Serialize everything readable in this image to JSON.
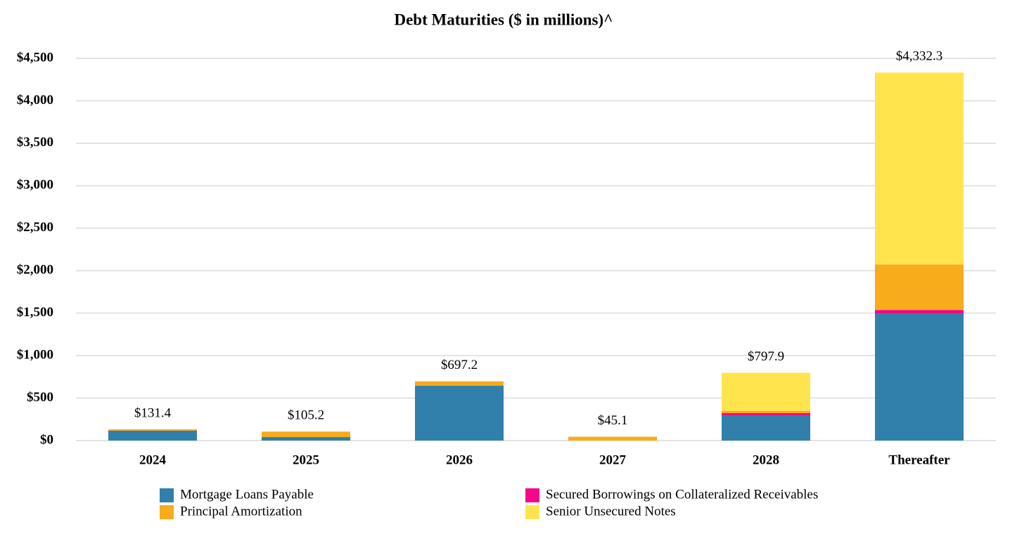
{
  "chart_data": {
    "type": "stacked-bar",
    "title": "Debt Maturities ($ in millions)^",
    "categories": [
      "2024",
      "2025",
      "2026",
      "2027",
      "2028",
      "Thereafter"
    ],
    "series": [
      {
        "name": "Mortgage Loans Payable",
        "color": "#3180ab",
        "values": [
          116,
          41,
          645,
          0,
          298,
          1497
        ]
      },
      {
        "name": "Secured Borrowings on Collateralized Receivables",
        "color": "#f5078a",
        "values": [
          0,
          0,
          0,
          0,
          25,
          40
        ]
      },
      {
        "name": "Principal Amortization",
        "color": "#f8ab1b",
        "values": [
          15.4,
          64.2,
          52.2,
          45.1,
          25,
          537
        ]
      },
      {
        "name": "Senior Unsecured Notes",
        "color": "#ffe44d",
        "values": [
          0,
          0,
          0,
          0,
          449.9,
          2258.3
        ]
      }
    ],
    "totals": {
      "values": [
        131.4,
        105.2,
        697.2,
        45.1,
        797.9,
        4332.3
      ],
      "value_labels": [
        "$131.4",
        "$105.2",
        "$697.2",
        "$45.1",
        "$797.9",
        "$4,332.3"
      ]
    },
    "ylim": [
      0,
      4500
    ],
    "yticks": [
      {
        "value": 0,
        "label": "$0"
      },
      {
        "value": 500,
        "label": "$500"
      },
      {
        "value": 1000,
        "label": "$1,000"
      },
      {
        "value": 1500,
        "label": "$1,500"
      },
      {
        "value": 2000,
        "label": "$2,000"
      },
      {
        "value": 2500,
        "label": "$2,500"
      },
      {
        "value": 3000,
        "label": "$3,000"
      },
      {
        "value": 3500,
        "label": "$3,500"
      },
      {
        "value": 4000,
        "label": "$4,000"
      },
      {
        "value": 4500,
        "label": "$4,500"
      }
    ],
    "grid": true
  }
}
